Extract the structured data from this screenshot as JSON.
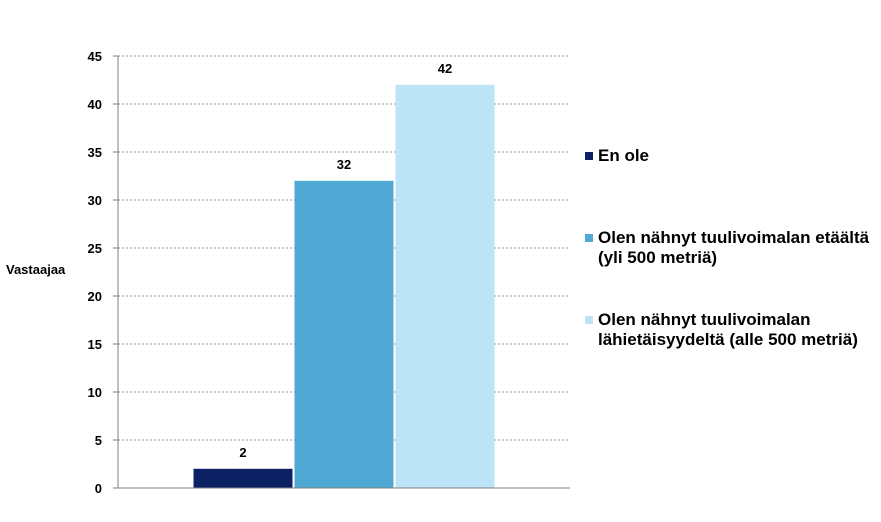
{
  "chart_data": {
    "type": "bar",
    "ylabel": "Vastaajaa",
    "ylim": [
      0,
      45
    ],
    "yticks": [
      0,
      5,
      10,
      15,
      20,
      25,
      30,
      35,
      40,
      45
    ],
    "grid": true,
    "legend_position": "right",
    "series": [
      {
        "name": "En ole",
        "value": 2,
        "color": "#0c2163"
      },
      {
        "name": "Olen nähnyt tuulivoimalan etäältä (yli 500 metriä)",
        "value": 32,
        "color": "#4fa9d4"
      },
      {
        "name": "Olen nähnyt tuulivoimalan lähietäisyydeltä (alle 500 metriä)",
        "value": 42,
        "color": "#bde3f7"
      }
    ]
  }
}
